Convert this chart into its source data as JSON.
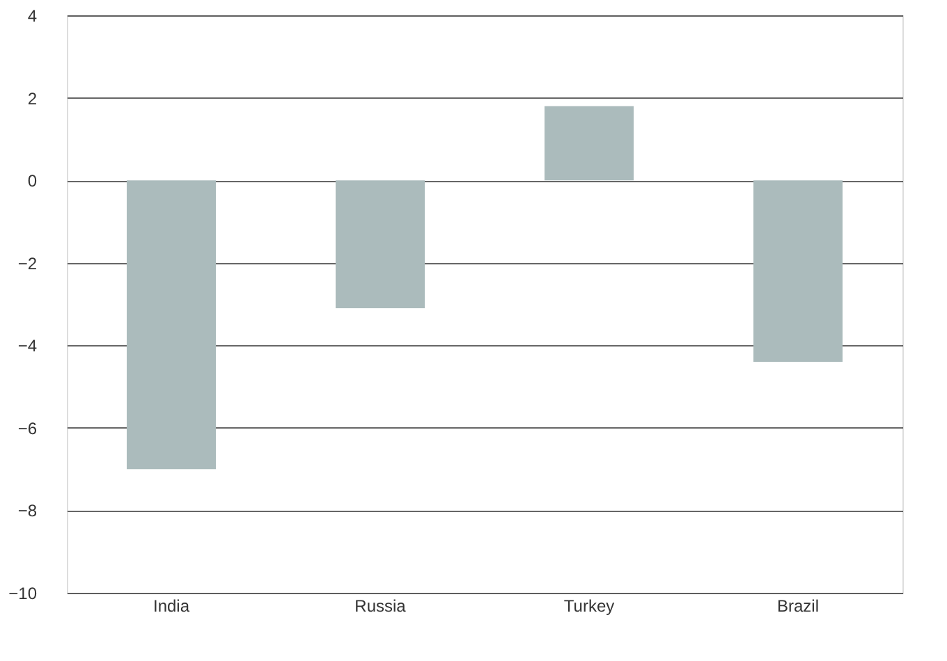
{
  "chart_data": {
    "type": "bar",
    "categories": [
      "India",
      "Russia",
      "Turkey",
      "Brazil"
    ],
    "values": [
      -7.0,
      -3.1,
      1.8,
      -4.4
    ],
    "color": "#abbbbc",
    "ylim": [
      -10,
      4
    ],
    "yticks": [
      -10,
      -8,
      -6,
      -4,
      -2,
      0,
      2,
      4
    ],
    "grid": "y"
  }
}
